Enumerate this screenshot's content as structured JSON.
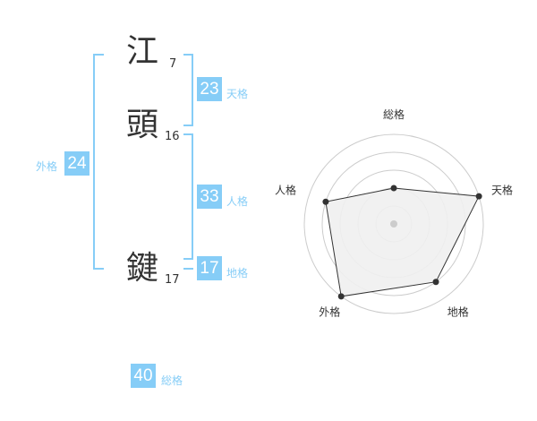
{
  "name": {
    "chars": [
      {
        "char": "江",
        "strokes": "7"
      },
      {
        "char": "頭",
        "strokes": "16"
      },
      {
        "char": "鍵",
        "strokes": "17"
      }
    ]
  },
  "kaku": {
    "tenkaku": {
      "label": "天格",
      "value": "23"
    },
    "jinkaku": {
      "label": "人格",
      "value": "33"
    },
    "chikaku": {
      "label": "地格",
      "value": "17"
    },
    "gaikaku": {
      "label": "外格",
      "value": "24"
    },
    "soukaku": {
      "label": "総格",
      "value": "40"
    }
  },
  "chart_data": {
    "type": "radar",
    "axes": [
      "総格",
      "天格",
      "地格",
      "外格",
      "人格"
    ],
    "values": [
      2,
      5,
      4,
      5,
      4
    ],
    "range": [
      0,
      5
    ],
    "rings": 5,
    "fill": "#f0f0f0",
    "line_color": "#333333"
  },
  "colors": {
    "accent": "#86cdf7",
    "text": "#333333"
  }
}
